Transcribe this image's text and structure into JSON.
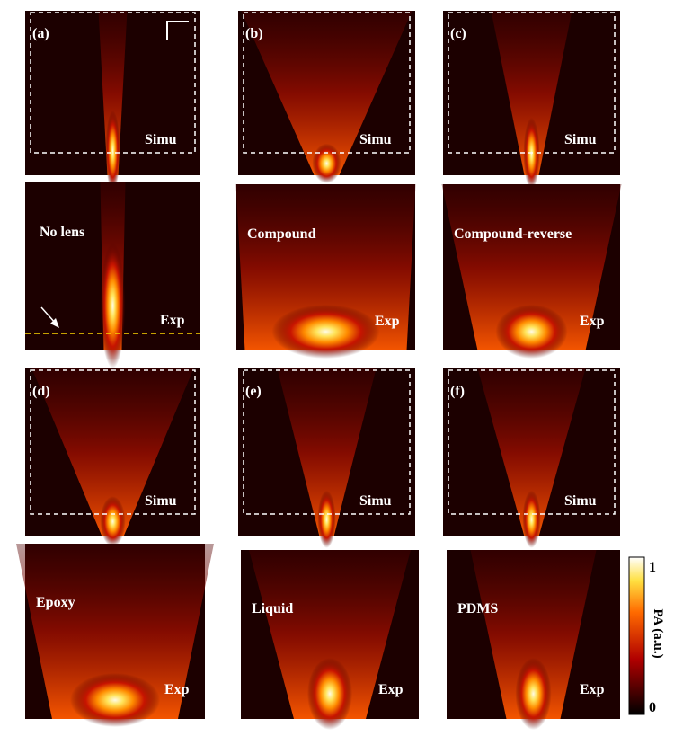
{
  "panels": [
    {
      "label": "(a)",
      "simu": "Simu",
      "name": "No lens",
      "exp": "Exp"
    },
    {
      "label": "(b)",
      "simu": "Simu",
      "name": "Compound",
      "exp": "Exp"
    },
    {
      "label": "(c)",
      "simu": "Simu",
      "name": "Compound-reverse",
      "exp": "Exp"
    },
    {
      "label": "(d)",
      "simu": "Simu",
      "name": "Epoxy",
      "exp": "Exp"
    },
    {
      "label": "(e)",
      "simu": "Simu",
      "name": "Liquid",
      "exp": "Exp"
    },
    {
      "label": "(f)",
      "simu": "Simu",
      "name": "PDMS",
      "exp": "Exp"
    }
  ],
  "colorbar": {
    "max": "1",
    "min": "0",
    "label": "PA (a.u.)"
  }
}
